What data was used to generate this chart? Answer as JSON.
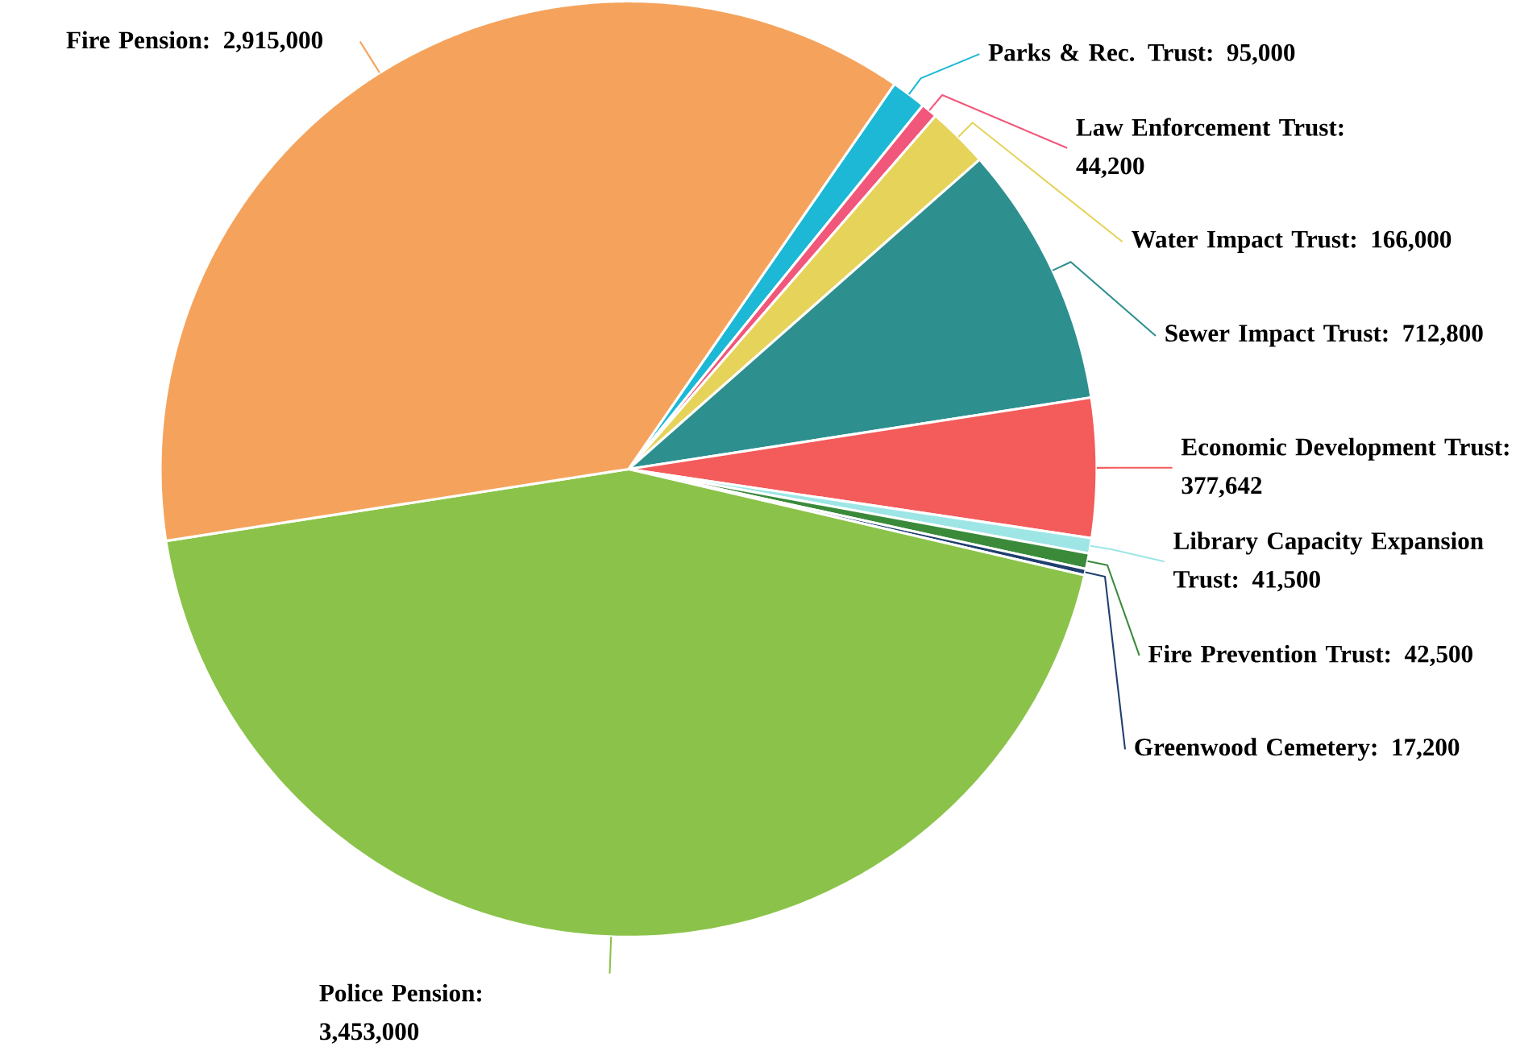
{
  "chart_data": {
    "type": "pie",
    "categories": [
      "Parks & Rec. Trust: 95,000",
      "Law Enforcement Trust: 44,200",
      "Water Impact Trust: 166,000",
      "Sewer Impact Trust: 712,800",
      "Economic Development Trust: 377,642",
      "Library Capacity Expansion Trust: 41,500",
      "Fire Prevention Trust: 42,500",
      "Greenwood Cemetery: 17,200",
      "Police Pension: 3,453,000",
      "Fire Pension: 2,915,000"
    ],
    "values": [
      95000,
      44200,
      166000,
      712800,
      377642,
      41500,
      42500,
      17200,
      3453000,
      2915000
    ],
    "colors": [
      "#1cb8d6",
      "#f0577a",
      "#e5d35a",
      "#2e8f8f",
      "#f45b5b",
      "#9ee6e6",
      "#3a8a3a",
      "#1f3f6e",
      "#8bc34a",
      "#f5a35c"
    ]
  }
}
